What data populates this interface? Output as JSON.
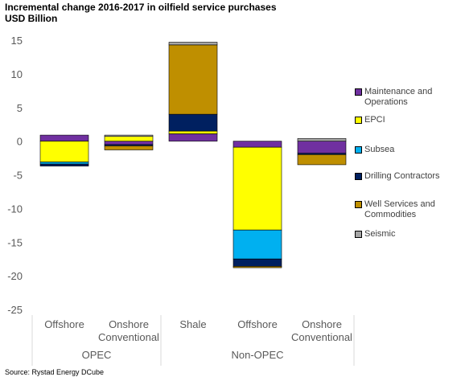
{
  "chart_data": {
    "type": "bar",
    "stacked": true,
    "title": "Incremental change 2016-2017 in oilfield service purchases",
    "subtitle": "USD Billion",
    "source": "Source: Rystad Energy DCube",
    "ylim": [
      -25,
      15
    ],
    "yticks": [
      15,
      10,
      5,
      0,
      -5,
      -10,
      -15,
      -20,
      -25
    ],
    "categories": [
      "Offshore",
      "Onshore Conventional",
      "Shale",
      "Offshore",
      "Onshore Conventional"
    ],
    "category_lines": [
      [
        "Offshore"
      ],
      [
        "Onshore",
        "Conventional"
      ],
      [
        "Shale"
      ],
      [
        "Offshore"
      ],
      [
        "Onshore",
        "Conventional"
      ]
    ],
    "groups": [
      {
        "label": "OPEC",
        "span": [
          0,
          1
        ]
      },
      {
        "label": "Non-OPEC",
        "span": [
          2,
          4
        ]
      }
    ],
    "legend_position": "right",
    "grid": false,
    "series": [
      {
        "name": "Maintenance and Operations",
        "color": "#7030a0",
        "values": [
          0.9,
          -0.5,
          1.1,
          -0.9,
          -1.8
        ]
      },
      {
        "name": "EPCI",
        "color": "#ffff00",
        "values": [
          -3.1,
          0.7,
          0.4,
          -12.3,
          0.0
        ]
      },
      {
        "name": "Subsea",
        "color": "#00b0f0",
        "values": [
          -0.3,
          0.0,
          0.0,
          -4.3,
          0.0
        ]
      },
      {
        "name": "Drilling Contractors",
        "color": "#002060",
        "values": [
          -0.3,
          -0.2,
          2.5,
          -1.1,
          -0.2
        ]
      },
      {
        "name": "Well Services and Commodities",
        "color": "#bf8f00",
        "values": [
          0.0,
          -0.6,
          10.3,
          -0.2,
          -1.5
        ]
      },
      {
        "name": "Seismic",
        "color": "#a6a6a6",
        "values": [
          0.0,
          0.2,
          0.4,
          0.0,
          0.4
        ]
      }
    ]
  }
}
